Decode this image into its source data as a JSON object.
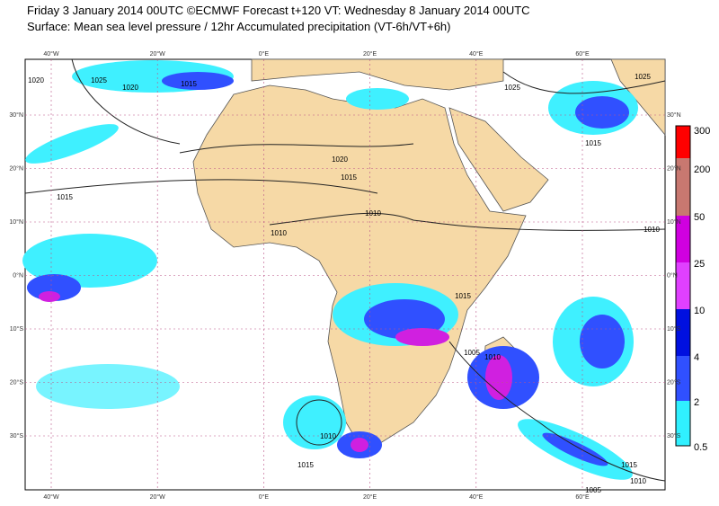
{
  "header": {
    "line1": "Friday 3 January 2014 00UTC ©ECMWF Forecast t+120 VT: Wednesday 8 January 2014 00UTC",
    "line2": "Surface: Mean sea level pressure / 12hr Accumulated precipitation (VT-6h/VT+6h)"
  },
  "map": {
    "lon_labels": [
      "40°W",
      "20°W",
      "0°E",
      "20°E",
      "40°E",
      "60°E"
    ],
    "lat_labels": [
      "30°N",
      "20°N",
      "10°N",
      "0°N",
      "10°S",
      "20°S",
      "30°S"
    ],
    "isobar_labels": [
      "1020",
      "1025",
      "1020",
      "1015",
      "1015",
      "1020",
      "1015",
      "1010",
      "1010",
      "1015",
      "1025",
      "1025",
      "1015",
      "1010",
      "1010",
      "1005",
      "1010",
      "1015",
      "1015",
      "1005",
      "1010"
    ]
  },
  "colorbar": {
    "labels": [
      "300",
      "200",
      "50",
      "25",
      "10",
      "4",
      "2",
      "0.5"
    ]
  }
}
